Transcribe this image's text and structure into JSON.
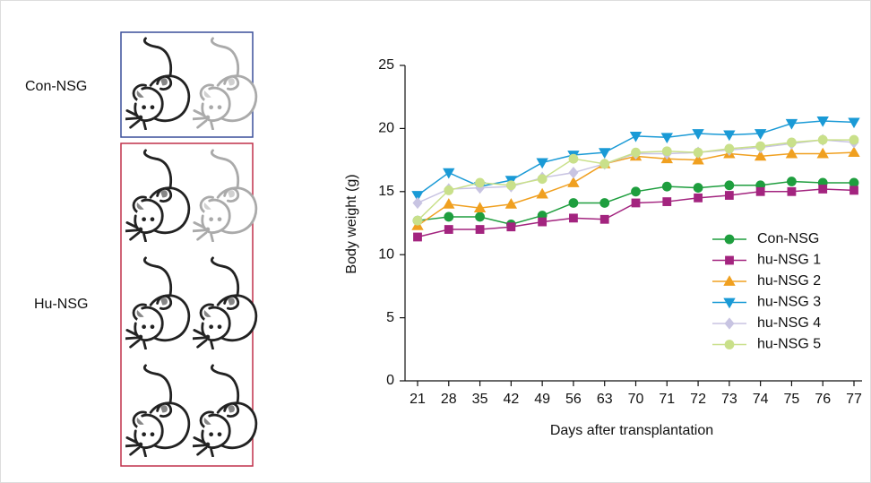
{
  "panel": {
    "labels": [
      "Con-NSG",
      "Hu-NSG"
    ]
  },
  "chart_data": {
    "type": "line",
    "x_label": "Days after transplantation",
    "y_label": "Body weight (g)",
    "categories": [
      "21",
      "28",
      "35",
      "42",
      "49",
      "56",
      "63",
      "70",
      "71",
      "72",
      "73",
      "74",
      "75",
      "76",
      "77"
    ],
    "ylim": [
      0,
      25
    ],
    "yticks": [
      0,
      5,
      10,
      15,
      20,
      25
    ],
    "legend": "right",
    "series": [
      {
        "name": "Con-NSG",
        "color": "#1e9e3e",
        "marker": "circle",
        "values": [
          12.7,
          13.0,
          13.0,
          12.4,
          13.1,
          14.1,
          14.1,
          15.0,
          15.4,
          15.3,
          15.5,
          15.5,
          15.8,
          15.7,
          15.7
        ]
      },
      {
        "name": "hu-NSG 1",
        "color": "#a3247f",
        "marker": "square",
        "values": [
          11.4,
          12.0,
          12.0,
          12.2,
          12.6,
          12.9,
          12.8,
          14.1,
          14.2,
          14.5,
          14.7,
          15.0,
          15.0,
          15.2,
          15.1
        ]
      },
      {
        "name": "hu-NSG 2",
        "color": "#f0a020",
        "marker": "triangle-up",
        "values": [
          12.3,
          14.0,
          13.7,
          14.0,
          14.8,
          15.7,
          17.2,
          17.8,
          17.6,
          17.5,
          18.0,
          17.8,
          18.0,
          18.0,
          18.1
        ]
      },
      {
        "name": "hu-NSG 3",
        "color": "#1a9ad6",
        "marker": "triangle-down",
        "values": [
          14.7,
          16.5,
          15.4,
          15.9,
          17.3,
          17.9,
          18.1,
          19.4,
          19.3,
          19.6,
          19.5,
          19.6,
          20.4,
          20.6,
          20.5
        ]
      },
      {
        "name": "hu-NSG 4",
        "color": "#c8c4e2",
        "marker": "diamond",
        "values": [
          14.1,
          15.2,
          15.3,
          15.4,
          16.1,
          16.5,
          17.2,
          18.0,
          18.0,
          18.1,
          18.3,
          18.5,
          18.8,
          19.1,
          18.9
        ]
      },
      {
        "name": "hu-NSG 5",
        "color": "#c9e08a",
        "marker": "circle",
        "values": [
          12.7,
          15.1,
          15.7,
          15.5,
          16.0,
          17.6,
          17.2,
          18.1,
          18.2,
          18.1,
          18.4,
          18.6,
          18.9,
          19.1,
          19.1
        ]
      }
    ]
  }
}
